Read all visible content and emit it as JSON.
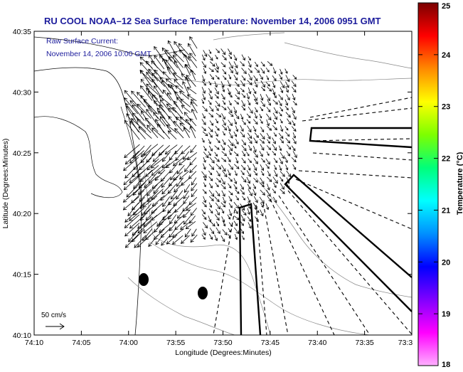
{
  "title": "RU COOL  NOAA–12  Sea Surface Temperature:  November 14, 2006 0951 GMT",
  "annotation": {
    "line1": "Raw Surface Current:",
    "line2": "November 14, 2006 10:00 GMT"
  },
  "scale": {
    "label": "50 cm/s"
  },
  "axes": {
    "xlabel": "Longitude (Degrees:Minutes)",
    "ylabel": "Latitude (Degrees:Minutes)",
    "xticks": [
      "74:10",
      "74:05",
      "74:00",
      "73:55",
      "73:50",
      "73:45",
      "73:40",
      "73:35",
      "73:3"
    ],
    "yticks": [
      "40:35",
      "40:30",
      "40:25",
      "40:20",
      "40:15",
      "40:10"
    ]
  },
  "colorbar": {
    "label": "Temperature (°C)",
    "ticks": [
      "25",
      "24",
      "23",
      "22",
      "21",
      "20",
      "19",
      "18"
    ],
    "gradient": [
      "#7a0000",
      "#ff0000",
      "#ff8a00",
      "#ffff00",
      "#7dff00",
      "#00ff7a",
      "#00ffff",
      "#0090ff",
      "#0000ff",
      "#8000ff",
      "#ff00ff",
      "#ffb0ff"
    ]
  },
  "colors": {
    "title": "#1c1c9c",
    "land_bg": "#ffffff"
  }
}
